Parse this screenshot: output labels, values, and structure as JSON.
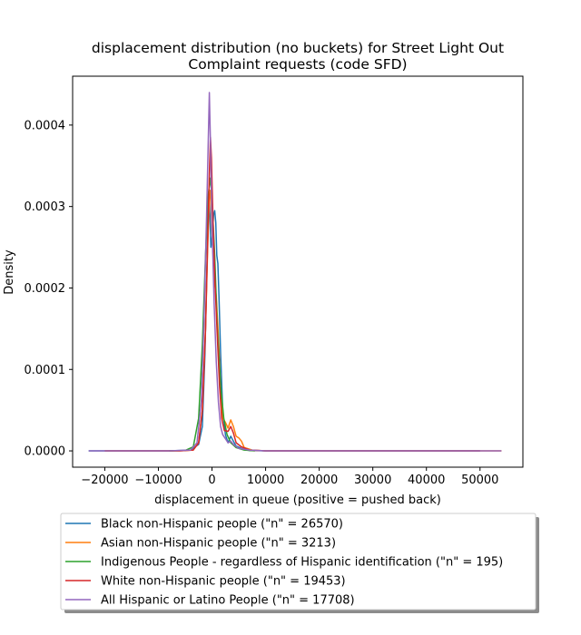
{
  "chart_data": {
    "type": "line",
    "title": [
      "displacement distribution (no buckets)  for Street Light Out",
      "Complaint requests (code SFD)"
    ],
    "xlabel": "displacement in queue (positive = pushed back)",
    "ylabel": "Density",
    "xlim": [
      -26000,
      58000
    ],
    "ylim": [
      -2e-05,
      0.00046
    ],
    "xticks": [
      -20000,
      -10000,
      0,
      10000,
      20000,
      30000,
      40000,
      50000
    ],
    "xtick_labels": [
      "−20000",
      "−10000",
      "0",
      "10000",
      "20000",
      "30000",
      "40000",
      "50000"
    ],
    "yticks": [
      0,
      0.0001,
      0.0002,
      0.0003,
      0.0004
    ],
    "ytick_labels": [
      "0.0000",
      "0.0001",
      "0.0002",
      "0.0003",
      "0.0004"
    ],
    "legend_position": "below",
    "series": [
      {
        "name": "Black non-Hispanic people (\"n\" = 26570)",
        "color": "#1f77b4",
        "points": [
          [
            -23000,
            0
          ],
          [
            -8000,
            0
          ],
          [
            -4000,
            1e-06
          ],
          [
            -2500,
            8e-06
          ],
          [
            -1800,
            3e-05
          ],
          [
            -1300,
            0.00012
          ],
          [
            -900,
            0.00024
          ],
          [
            -600,
            0.00031
          ],
          [
            -400,
            0.00029
          ],
          [
            -200,
            0.00025
          ],
          [
            0,
            0.00026
          ],
          [
            300,
            0.00029
          ],
          [
            500,
            0.000295
          ],
          [
            700,
            0.00028
          ],
          [
            900,
            0.00024
          ],
          [
            1100,
            0.00023
          ],
          [
            1300,
            0.00019
          ],
          [
            1600,
            0.00012
          ],
          [
            2000,
            5e-05
          ],
          [
            2500,
            2e-05
          ],
          [
            3000,
            1e-05
          ],
          [
            3500,
            1.8e-05
          ],
          [
            4000,
            1.2e-05
          ],
          [
            4500,
            6e-06
          ],
          [
            5500,
            3e-06
          ],
          [
            7000,
            5e-07
          ],
          [
            10000,
            0
          ],
          [
            50000,
            0
          ]
        ]
      },
      {
        "name": "Asian non-Hispanic people (\"n\" = 3213)",
        "color": "#ff7f0e",
        "points": [
          [
            -20000,
            0
          ],
          [
            -6000,
            0
          ],
          [
            -3500,
            1e-06
          ],
          [
            -2500,
            1e-05
          ],
          [
            -1800,
            5e-05
          ],
          [
            -1200,
            0.00015
          ],
          [
            -800,
            0.00025
          ],
          [
            -500,
            0.00031
          ],
          [
            -300,
            0.00032
          ],
          [
            0,
            0.00027
          ],
          [
            400,
            0.00021
          ],
          [
            800,
            0.00019
          ],
          [
            1200,
            0.00014
          ],
          [
            1600,
            8e-05
          ],
          [
            2000,
            4e-05
          ],
          [
            2500,
            3.5e-05
          ],
          [
            3000,
            2.8e-05
          ],
          [
            3500,
            3.8e-05
          ],
          [
            4000,
            3e-05
          ],
          [
            4500,
            1.8e-05
          ],
          [
            5000,
            1.6e-05
          ],
          [
            5500,
            1.2e-05
          ],
          [
            6000,
            4e-06
          ],
          [
            7500,
            1e-06
          ],
          [
            10000,
            0
          ],
          [
            54000,
            0
          ]
        ]
      },
      {
        "name": "Indigenous People - regardless of Hispanic identification (\"n\" = 195)",
        "color": "#2ca02c",
        "points": [
          [
            -8000,
            0
          ],
          [
            -5000,
            5e-07
          ],
          [
            -3500,
            5e-06
          ],
          [
            -2500,
            4e-05
          ],
          [
            -1800,
            0.00013
          ],
          [
            -1200,
            0.00024
          ],
          [
            -700,
            0.000315
          ],
          [
            -300,
            0.000335
          ],
          [
            0,
            0.00031
          ],
          [
            500,
            0.00024
          ],
          [
            1000,
            0.00015
          ],
          [
            1600,
            8e-05
          ],
          [
            2200,
            4e-05
          ],
          [
            2800,
            2e-05
          ],
          [
            3500,
            1e-05
          ],
          [
            4500,
            4e-06
          ],
          [
            6000,
            1e-06
          ],
          [
            8000,
            0
          ]
        ]
      },
      {
        "name": "White non-Hispanic people (\"n\" = 19453)",
        "color": "#d62728",
        "points": [
          [
            -20000,
            0
          ],
          [
            -6000,
            0
          ],
          [
            -3500,
            1e-06
          ],
          [
            -2500,
            1e-05
          ],
          [
            -1800,
            5e-05
          ],
          [
            -1200,
            0.00015
          ],
          [
            -800,
            0.00026
          ],
          [
            -500,
            0.00034
          ],
          [
            -300,
            0.000385
          ],
          [
            -100,
            0.00036
          ],
          [
            200,
            0.00028
          ],
          [
            600,
            0.0002
          ],
          [
            1000,
            0.00014
          ],
          [
            1400,
            8e-05
          ],
          [
            1800,
            4e-05
          ],
          [
            2300,
            2.5e-05
          ],
          [
            3000,
            2.4e-05
          ],
          [
            3500,
            3e-05
          ],
          [
            4000,
            2.2e-05
          ],
          [
            4500,
            1e-05
          ],
          [
            5500,
            5e-06
          ],
          [
            7000,
            1e-06
          ],
          [
            10000,
            0
          ],
          [
            50000,
            0
          ]
        ]
      },
      {
        "name": "All Hispanic or Latino People (\"n\" = 17708)",
        "color": "#9467bd",
        "points": [
          [
            -23000,
            0
          ],
          [
            -8000,
            0
          ],
          [
            -4000,
            1e-06
          ],
          [
            -2800,
            1e-05
          ],
          [
            -2000,
            6e-05
          ],
          [
            -1500,
            0.00016
          ],
          [
            -1000,
            0.00029
          ],
          [
            -700,
            0.00038
          ],
          [
            -500,
            0.00044
          ],
          [
            -300,
            0.00038
          ],
          [
            0,
            0.00028
          ],
          [
            400,
            0.00018
          ],
          [
            800,
            0.00011
          ],
          [
            1200,
            6e-05
          ],
          [
            1600,
            3e-05
          ],
          [
            2000,
            2e-05
          ],
          [
            2500,
            1.5e-05
          ],
          [
            3000,
            1e-05
          ],
          [
            3500,
            1.2e-05
          ],
          [
            4000,
            8e-06
          ],
          [
            5000,
            3e-06
          ],
          [
            7000,
            1e-06
          ],
          [
            10000,
            0
          ],
          [
            54000,
            0
          ]
        ]
      }
    ]
  }
}
